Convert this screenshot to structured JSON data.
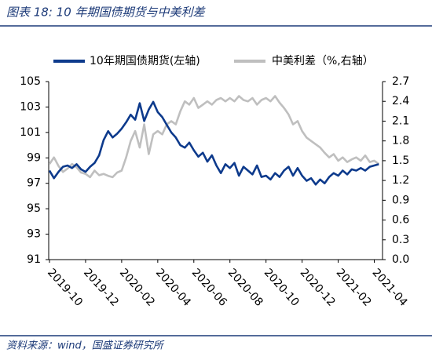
{
  "chart_data": {
    "type": "line",
    "title": "图表 18:  10 年期国债期货与中美利差",
    "source": "资料来源：wind，国盛证券研究所",
    "categories": [
      "2019-10",
      null,
      null,
      null,
      null,
      null,
      null,
      null,
      "2019-12",
      null,
      null,
      null,
      null,
      null,
      null,
      null,
      "2020-02",
      null,
      null,
      null,
      null,
      null,
      null,
      null,
      "2020-04",
      null,
      null,
      null,
      null,
      null,
      null,
      null,
      "2020-06",
      null,
      null,
      null,
      null,
      null,
      null,
      null,
      "2020-08",
      null,
      null,
      null,
      null,
      null,
      null,
      null,
      "2020-10",
      null,
      null,
      null,
      null,
      null,
      null,
      null,
      "2020-12",
      null,
      null,
      null,
      null,
      null,
      null,
      null,
      "2021-02",
      null,
      null,
      null,
      null,
      null,
      null,
      null,
      "2021-04",
      null
    ],
    "series": [
      {
        "name": "10年期国债期货(左轴)",
        "color": "#0d3a8c",
        "axis": "y",
        "values": [
          98.0,
          97.4,
          97.9,
          98.3,
          98.4,
          98.2,
          98.5,
          98.1,
          97.9,
          98.3,
          98.6,
          99.2,
          100.4,
          101.1,
          100.6,
          100.9,
          101.3,
          101.8,
          102.4,
          102.0,
          103.3,
          101.9,
          102.8,
          103.4,
          102.6,
          102.2,
          101.6,
          101.0,
          100.6,
          100.0,
          99.8,
          100.2,
          99.6,
          99.1,
          99.4,
          98.7,
          99.2,
          98.4,
          97.8,
          98.5,
          98.2,
          98.6,
          97.6,
          98.3,
          98.0,
          97.7,
          98.4,
          97.5,
          97.6,
          97.3,
          97.8,
          97.5,
          98.0,
          98.3,
          97.6,
          98.2,
          97.6,
          97.2,
          97.4,
          96.9,
          97.3,
          97.0,
          97.5,
          97.8,
          97.6,
          98.0,
          97.7,
          98.1,
          98.0,
          98.2,
          98.0,
          98.3,
          98.4,
          98.5
        ]
      },
      {
        "name": "中美利差（%,右轴）",
        "color": "#bfbfbf",
        "axis": "y2",
        "values": [
          1.45,
          1.55,
          1.42,
          1.33,
          1.38,
          1.45,
          1.4,
          1.32,
          1.3,
          1.25,
          1.35,
          1.28,
          1.3,
          1.27,
          1.25,
          1.32,
          1.35,
          1.55,
          1.8,
          1.95,
          1.7,
          2.05,
          1.6,
          1.9,
          1.95,
          1.9,
          2.05,
          2.1,
          2.05,
          2.25,
          2.4,
          2.35,
          2.45,
          2.3,
          2.35,
          2.4,
          2.35,
          2.42,
          2.45,
          2.4,
          2.45,
          2.4,
          2.48,
          2.42,
          2.4,
          2.45,
          2.35,
          2.42,
          2.45,
          2.4,
          2.48,
          2.38,
          2.3,
          2.2,
          2.05,
          2.1,
          1.95,
          1.85,
          1.8,
          1.75,
          1.7,
          1.62,
          1.55,
          1.6,
          1.5,
          1.55,
          1.48,
          1.52,
          1.55,
          1.5,
          1.58,
          1.48,
          1.5,
          1.45
        ]
      }
    ],
    "ylim": [
      91,
      105
    ],
    "yticks": [
      91,
      93,
      95,
      97,
      99,
      101,
      103,
      105
    ],
    "y2lim": [
      0,
      2.7
    ],
    "y2ticks": [
      {
        "value": 0,
        "label": "0.0"
      },
      0.3,
      0.6,
      0.9,
      1.2,
      1.5,
      1.8,
      2.1,
      2.4,
      2.7
    ],
    "grid": false
  }
}
